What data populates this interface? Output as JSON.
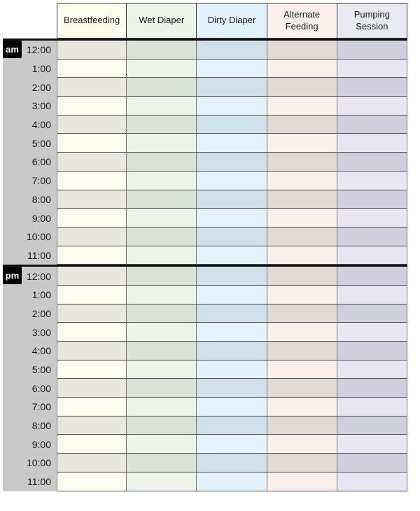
{
  "table": {
    "time_column_bg": "#c9c9c9",
    "columns": [
      {
        "label": "Breastfeeding",
        "header_bg": "#fdfdee",
        "row_light": "#fdfdf0",
        "row_dark": "#e8e7dd"
      },
      {
        "label": "Wet Diaper",
        "header_bg": "#edf2e9",
        "row_light": "#eef3ea",
        "row_dark": "#dae1d6"
      },
      {
        "label": "Dirty Diaper",
        "header_bg": "#e2f1fb",
        "row_light": "#e4f2fc",
        "row_dark": "#cfe0eb"
      },
      {
        "label": "Alternate Feeding",
        "header_bg": "#fbf0ed",
        "row_light": "#fbefec",
        "row_dark": "#e2d9d5"
      },
      {
        "label": "Pumping Session",
        "header_bg": "#e9e9f2",
        "row_light": "#e7e6f1",
        "row_dark": "#cfcfdd"
      }
    ],
    "sections": [
      {
        "label": "am",
        "times": [
          "12:00",
          "1:00",
          "2:00",
          "3:00",
          "4:00",
          "5:00",
          "6:00",
          "7:00",
          "8:00",
          "9:00",
          "10:00",
          "11:00"
        ]
      },
      {
        "label": "pm",
        "times": [
          "12:00",
          "1:00",
          "2:00",
          "3:00",
          "4:00",
          "5:00",
          "6:00",
          "7:00",
          "8:00",
          "9:00",
          "10:00",
          "11:00"
        ]
      }
    ]
  },
  "colors": {
    "divider": "#111111",
    "row_border": "#4e4e4e",
    "column_border": "#7a7a7a",
    "header_border": "#3a3a3a",
    "badge_bg": "#000000",
    "badge_text": "#ffffff",
    "text": "#1a1a1a"
  }
}
